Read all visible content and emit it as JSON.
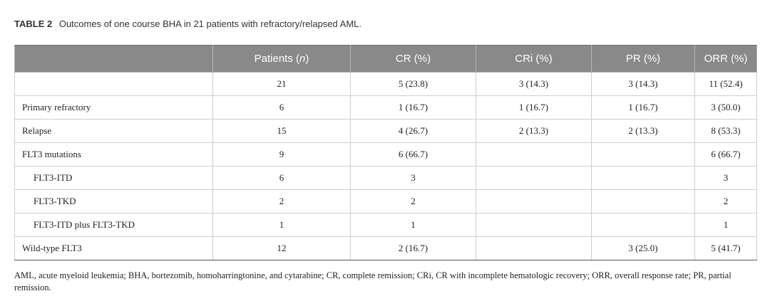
{
  "caption": {
    "label": "TABLE 2",
    "text": "Outcomes of one course BHA in 21 patients with refractory/relapsed AML."
  },
  "table": {
    "headers": {
      "patients_prefix": "Patients (",
      "patients_n": "n",
      "patients_suffix": ")",
      "cr": "CR (%)",
      "cri": "CRi (%)",
      "pr": "PR (%)",
      "orr": "ORR (%)"
    },
    "rows": [
      {
        "label": "",
        "patients": "21",
        "cr": "5 (23.8)",
        "cri": "3 (14.3)",
        "pr": "3 (14.3)",
        "orr": "11 (52.4)"
      },
      {
        "label": "Primary refractory",
        "patients": "6",
        "cr": "1 (16.7)",
        "cri": "1 (16.7)",
        "pr": "1 (16.7)",
        "orr": "3 (50.0)"
      },
      {
        "label": "Relapse",
        "patients": "15",
        "cr": "4 (26.7)",
        "cri": "2 (13.3)",
        "pr": "2 (13.3)",
        "orr": "8 (53.3)"
      },
      {
        "label": "FLT3 mutations",
        "patients": "9",
        "cr": "6 (66.7)",
        "cri": "",
        "pr": "",
        "orr": "6 (66.7)"
      },
      {
        "label": "FLT3-ITD",
        "patients": "6",
        "cr": "3",
        "cri": "",
        "pr": "",
        "orr": "3"
      },
      {
        "label": "FLT3-TKD",
        "patients": "2",
        "cr": "2",
        "cri": "",
        "pr": "",
        "orr": "2"
      },
      {
        "label": "FLT3-ITD plus FLT3-TKD",
        "patients": "1",
        "cr": "1",
        "cri": "",
        "pr": "",
        "orr": "1"
      },
      {
        "label": "Wild-type FLT3",
        "patients": "12",
        "cr": "2 (16.7)",
        "cri": "",
        "pr": "3 (25.0)",
        "orr": "5 (41.7)"
      }
    ]
  },
  "footnote": "AML, acute myeloid leukemia; BHA, bortezomib, homoharringtonine, and cytarabine; CR, complete remission; CRi, CR with incomplete hematologic recovery; ORR, overall response rate; PR, partial remission."
}
